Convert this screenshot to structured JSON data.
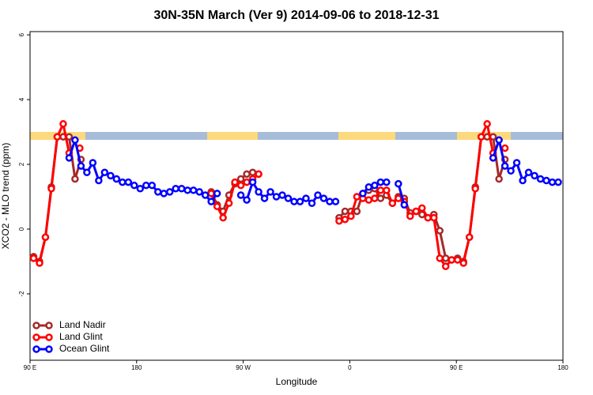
{
  "chart_data": {
    "type": "line",
    "title": "30N-35N March (Ver 9)   2014-09-06 to 2018-12-31",
    "x_label": "Longitude",
    "y_label": "XCO2 - MLO trend (ppm)",
    "xlim": [
      90,
      540
    ],
    "ylim": [
      -4.05,
      6.1
    ],
    "xticks": [
      {
        "value": 90,
        "label": "90 E"
      },
      180,
      {
        "value": 270,
        "label": "90 W"
      },
      {
        "value": 360,
        "label": "0"
      },
      {
        "value": 450,
        "label": "90 E"
      },
      {
        "value": 540,
        "label": "180"
      }
    ],
    "yticks": [
      -2,
      0,
      2,
      4,
      6
    ],
    "legend": "bottom-left",
    "series": [
      {
        "name": "Land Nadir",
        "color": "#a52a2a",
        "x": [
          93,
          98,
          103,
          108,
          113,
          118,
          123,
          128,
          133,
          138,
          243,
          248,
          253,
          258,
          263,
          268,
          273,
          278,
          283,
          288,
          351,
          356,
          361,
          366,
          371,
          376,
          381,
          386,
          391,
          396,
          401,
          406,
          411,
          416,
          421,
          426,
          431,
          436,
          441,
          446,
          451,
          456,
          461,
          466,
          471,
          476,
          481,
          486,
          491
        ],
        "values": [
          -0.85,
          -1.0,
          -0.25,
          1.3,
          2.85,
          2.85,
          2.85,
          1.55,
          2.15,
          null,
          1.15,
          0.75,
          0.55,
          1.05,
          1.4,
          1.55,
          1.7,
          1.75,
          1.7,
          null,
          0.35,
          0.55,
          0.55,
          0.55,
          1.1,
          1.2,
          1.25,
          0.95,
          1.05,
          0.8,
          1.0,
          0.95,
          0.5,
          0.55,
          0.45,
          0.35,
          0.45,
          -0.05,
          -0.9,
          -0.95,
          -0.9,
          -1.0,
          -0.25,
          1.3,
          2.85,
          2.85,
          2.85,
          1.55,
          2.15
        ]
      },
      {
        "name": "Land Glint",
        "color": "#ff0000",
        "x": [
          93,
          98,
          103,
          108,
          113,
          118,
          123,
          128,
          132,
          137,
          243,
          248,
          253,
          258,
          263,
          268,
          273,
          278,
          283,
          288,
          351,
          356,
          361,
          366,
          371,
          376,
          381,
          386,
          391,
          396,
          401,
          406,
          411,
          416,
          421,
          426,
          431,
          436,
          441,
          446,
          451,
          456,
          461,
          466,
          471,
          476,
          481,
          486,
          491
        ],
        "values": [
          -0.9,
          -1.05,
          -0.25,
          1.25,
          2.85,
          3.25,
          2.35,
          null,
          2.5,
          null,
          1.1,
          0.7,
          0.35,
          0.8,
          1.45,
          1.35,
          1.45,
          1.55,
          1.7,
          null,
          0.25,
          0.3,
          0.4,
          1.0,
          0.95,
          0.9,
          0.95,
          1.2,
          1.2,
          0.8,
          0.95,
          0.85,
          0.4,
          0.55,
          0.65,
          0.35,
          0.35,
          -0.9,
          -1.15,
          -0.95,
          -0.95,
          -1.05,
          -0.25,
          1.25,
          2.85,
          3.25,
          2.35,
          null,
          2.5
        ]
      },
      {
        "name": "Ocean Glint",
        "color": "#0000ff",
        "x": [
          123,
          128,
          133,
          138,
          143,
          148,
          153,
          158,
          163,
          168,
          173,
          178,
          183,
          188,
          193,
          198,
          203,
          208,
          213,
          218,
          223,
          228,
          233,
          238,
          243,
          248,
          253,
          268,
          273,
          278,
          283,
          288,
          293,
          298,
          303,
          308,
          313,
          318,
          323,
          328,
          333,
          338,
          343,
          348,
          353,
          371,
          376,
          381,
          386,
          391,
          396,
          401,
          406,
          411,
          481,
          486,
          491,
          496,
          501,
          506,
          511,
          516,
          521,
          526,
          531,
          536
        ],
        "values": [
          2.2,
          2.75,
          1.95,
          1.75,
          2.05,
          1.5,
          1.75,
          1.65,
          1.55,
          1.45,
          1.45,
          1.35,
          1.25,
          1.35,
          1.35,
          1.15,
          1.1,
          1.15,
          1.25,
          1.25,
          1.2,
          1.2,
          1.15,
          1.05,
          0.85,
          1.1,
          null,
          1.05,
          0.9,
          1.45,
          1.15,
          0.95,
          1.15,
          1.0,
          1.05,
          0.95,
          0.85,
          0.85,
          0.95,
          0.8,
          1.05,
          0.95,
          0.85,
          0.85,
          null,
          1.1,
          1.3,
          1.35,
          1.45,
          1.45,
          null,
          1.4,
          0.75,
          null,
          2.2,
          2.75,
          1.95,
          1.8,
          2.05,
          1.5,
          1.75,
          1.65,
          1.55,
          1.5,
          1.45,
          1.45
        ]
      }
    ]
  }
}
